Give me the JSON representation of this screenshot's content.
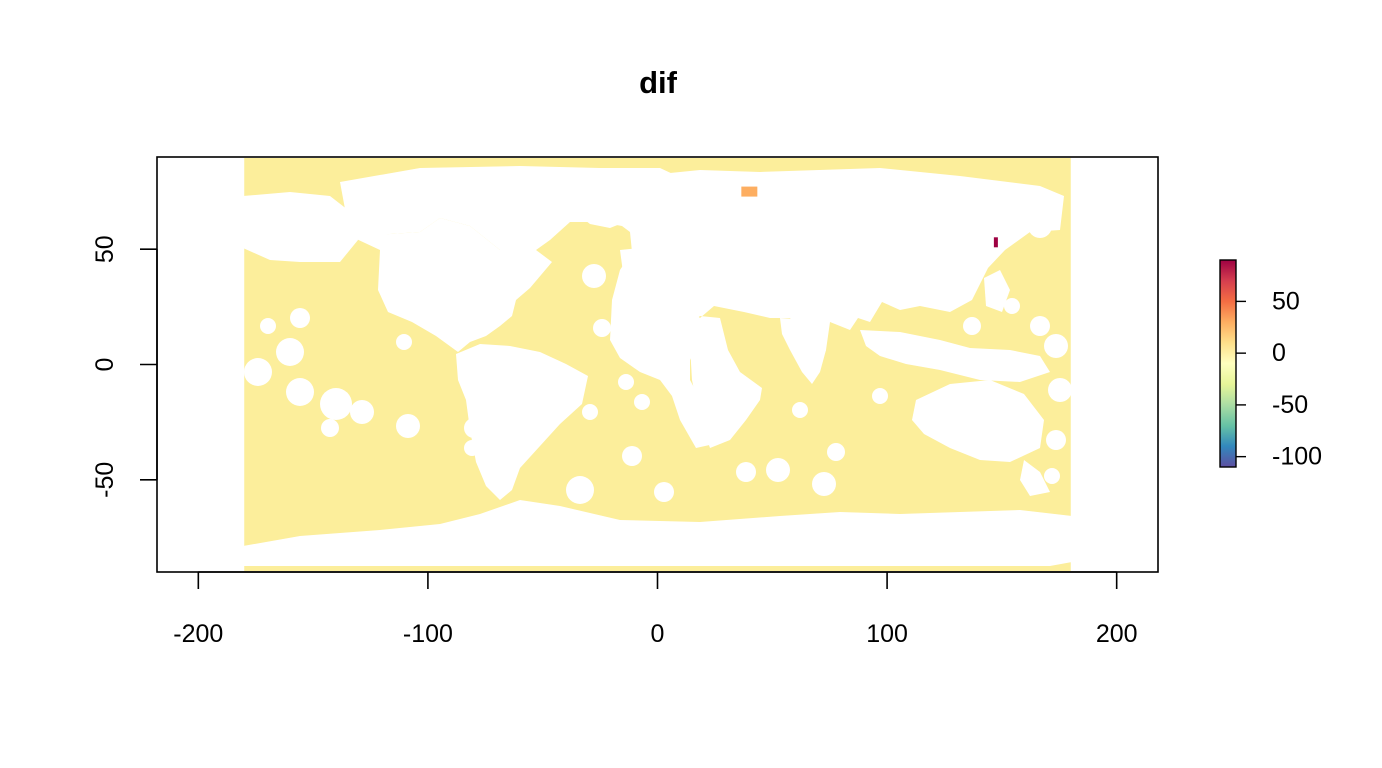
{
  "chart_data": {
    "type": "heatmap",
    "title": "dif",
    "xlabel": "",
    "ylabel": "",
    "xlim": [
      -218,
      218
    ],
    "ylim": [
      -90,
      90
    ],
    "raster_extent": {
      "xmin": -180,
      "xmax": 180,
      "ymin": -90,
      "ymax": 90
    },
    "x_ticks": [
      -200,
      -100,
      0,
      100,
      200
    ],
    "x_tick_labels": [
      "-200",
      "-100",
      "0",
      "100",
      "200"
    ],
    "y_ticks": [
      -50,
      0,
      50
    ],
    "y_tick_labels": [
      "-50",
      "0",
      "50"
    ],
    "legend": {
      "position": "right",
      "min": -110,
      "max": 90,
      "ticks": [
        50,
        0,
        -50,
        -100
      ],
      "tick_labels": [
        "50",
        "0",
        "-50",
        "-100"
      ],
      "palette": [
        "#5E4FA2",
        "#3288BD",
        "#66C2A5",
        "#ABDDA4",
        "#E6F598",
        "#FFFFBF",
        "#FEE08B",
        "#FDAE61",
        "#F46D43",
        "#D53E4F",
        "#9E0142"
      ]
    },
    "dominant_value": 5,
    "dominant_color": "#FCEE9B",
    "hotspots": [
      {
        "lon": 40,
        "lat": 75,
        "value": 35
      },
      {
        "lon": 150,
        "lat": 53,
        "value": 85
      }
    ]
  }
}
